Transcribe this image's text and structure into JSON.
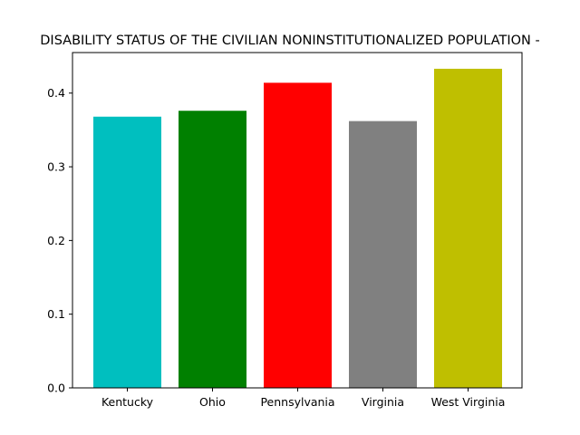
{
  "chart_data": {
    "type": "bar",
    "title": "DISABILITY STATUS OF THE CIVILIAN NONINSTITUTIONALIZED POPULATION -",
    "xlabel": "",
    "ylabel": "",
    "categories": [
      "Kentucky",
      "Ohio",
      "Pennsylvania",
      "Virginia",
      "West Virginia"
    ],
    "values": [
      0.368,
      0.376,
      0.414,
      0.362,
      0.433
    ],
    "colors": [
      "#00bfbf",
      "#008000",
      "#ff0000",
      "#808080",
      "#bfbf00"
    ],
    "ylim": [
      0,
      0.455
    ],
    "yticks": [
      0.0,
      0.1,
      0.2,
      0.3,
      0.4
    ],
    "ytick_labels": [
      "0.0",
      "0.1",
      "0.2",
      "0.3",
      "0.4"
    ],
    "grid": false,
    "legend": "none"
  }
}
